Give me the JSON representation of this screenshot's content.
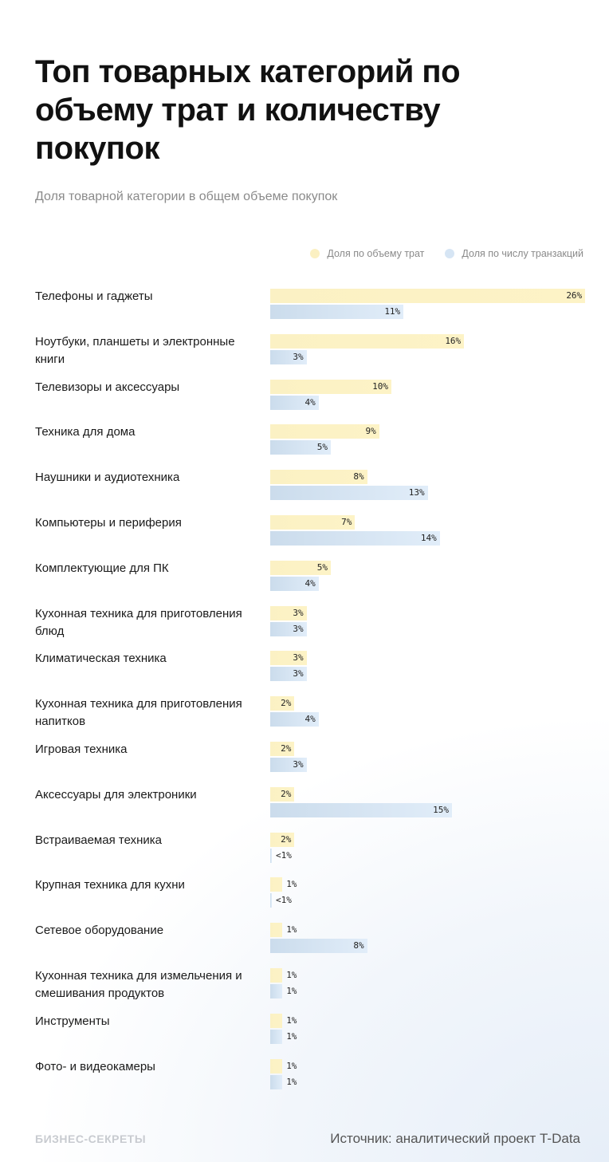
{
  "title": "Топ товарных категорий по объему трат и количеству покупок",
  "subtitle": "Доля товарной категории в общем объеме покупок",
  "footer": {
    "logo": "БИЗНЕС-СЕКРЕТЫ",
    "source": "Источник: аналитический проект T-Data"
  },
  "chart_data": {
    "type": "bar",
    "orientation": "horizontal",
    "unit": "%",
    "legend_placement": "top-right",
    "grid": false,
    "series": [
      {
        "name": "Доля по объему трат",
        "color": "#fbf0c2",
        "values": [
          26,
          16,
          10,
          9,
          8,
          7,
          5,
          3,
          3,
          2,
          2,
          2,
          2,
          1,
          1,
          1,
          1,
          1
        ],
        "labels": [
          "26%",
          "16%",
          "10%",
          "9%",
          "8%",
          "7%",
          "5%",
          "3%",
          "3%",
          "2%",
          "2%",
          "2%",
          "2%",
          "1%",
          "1%",
          "1%",
          "1%",
          "1%"
        ]
      },
      {
        "name": "Доля по числу транзакций",
        "color": "#d6e5f4",
        "values": [
          11,
          3,
          4,
          5,
          13,
          14,
          4,
          3,
          3,
          4,
          3,
          15,
          0.1,
          0.1,
          8,
          1,
          1,
          1
        ],
        "labels": [
          "11%",
          "3%",
          "4%",
          "5%",
          "13%",
          "14%",
          "4%",
          "3%",
          "3%",
          "4%",
          "3%",
          "15%",
          "<1%",
          "<1%",
          "8%",
          "1%",
          "1%",
          "1%"
        ]
      }
    ],
    "categories": [
      "Телефоны и гаджеты",
      "Ноутбуки, планшеты и электронные книги",
      "Телевизоры и аксессуары",
      "Техника для дома",
      "Наушники и аудиотехника",
      "Компьютеры и периферия",
      "Комплектующие для ПК",
      "Кухонная техника для приготовления блюд",
      "Климатическая техника",
      "Кухонная техника для приготовления напитков",
      "Игровая техника",
      "Аксессуары для электроники",
      "Встраиваемая техника",
      "Крупная техника для кухни",
      "Сетевое оборудование",
      "Кухонная техника для измельчения и смешивания продуктов",
      "Инструменты",
      "Фото- и видеокамеры"
    ]
  }
}
